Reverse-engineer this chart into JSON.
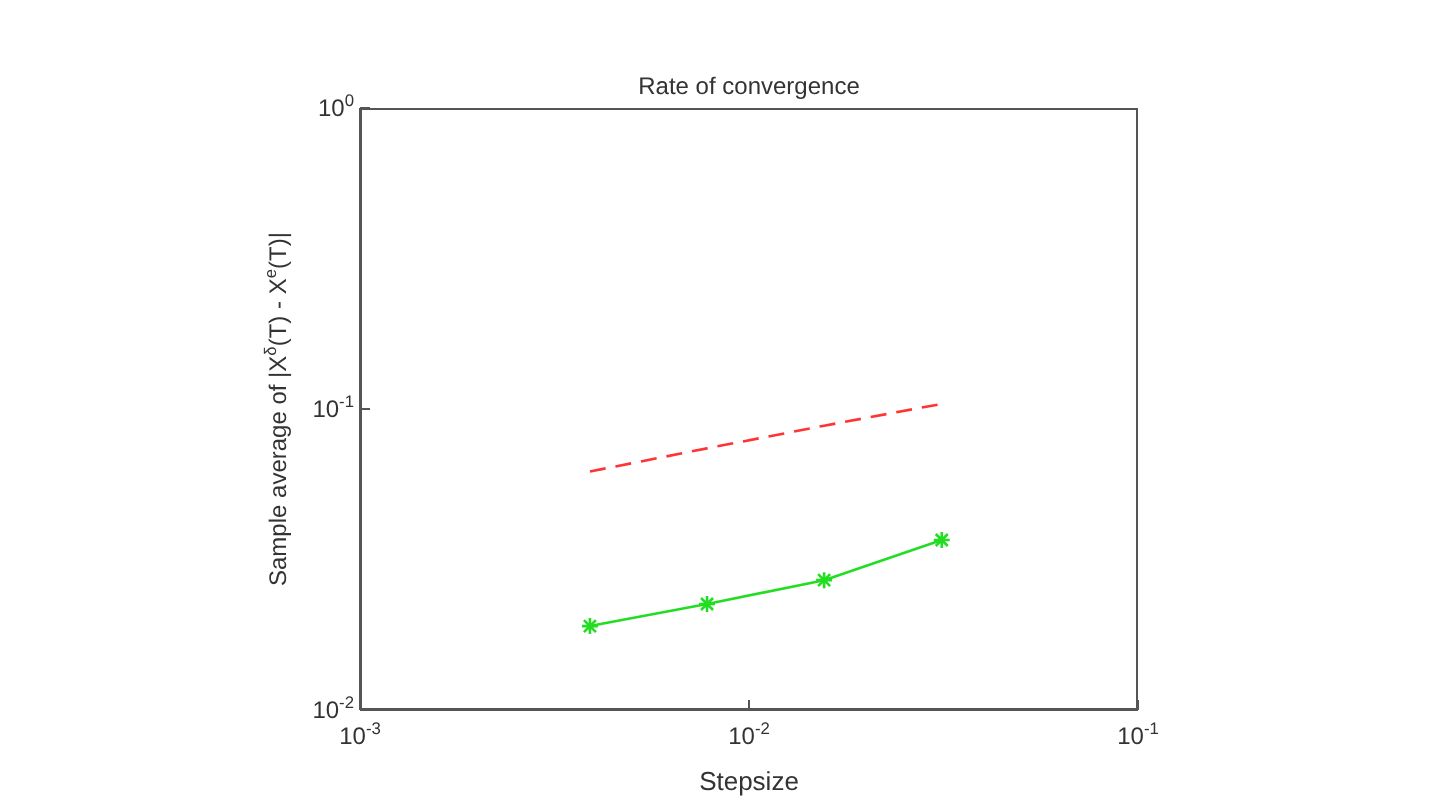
{
  "chart_data": {
    "type": "line",
    "title": "Rate of convergence",
    "xlabel": "Stepsize",
    "ylabel": "Sample average of |X$^{δ}$(T) - X$^{e}$(T)|",
    "log": "xy",
    "x": [
      0.0039,
      0.0078,
      0.0156,
      0.0313
    ],
    "xlim": [
      0.001,
      0.1
    ],
    "xticks": [
      {
        "value": 0.001,
        "label": "10$^{-3}$"
      },
      {
        "value": 0.01,
        "label": "10$^{-2}$"
      },
      {
        "value": 0.1,
        "label": "10$^{-1}$"
      }
    ],
    "ylim": [
      0.01,
      1
    ],
    "yticks": [
      {
        "value": 0.01,
        "label": "10$^{-2}$"
      },
      {
        "value": 0.1,
        "label": "10$^{-1}$"
      },
      {
        "value": 1,
        "label": "10$^{0}$"
      }
    ],
    "grid": false,
    "legend": false,
    "series": [
      {
        "color": "#ff3333",
        "values": [
          0.062,
          0.074,
          0.088,
          0.104
        ],
        "line_style": "dashed",
        "marker": "none"
      },
      {
        "color": "#22dd22",
        "values": [
          0.019,
          0.0225,
          0.027,
          0.0367
        ],
        "line_style": "solid",
        "marker": "cross"
      }
    ]
  }
}
